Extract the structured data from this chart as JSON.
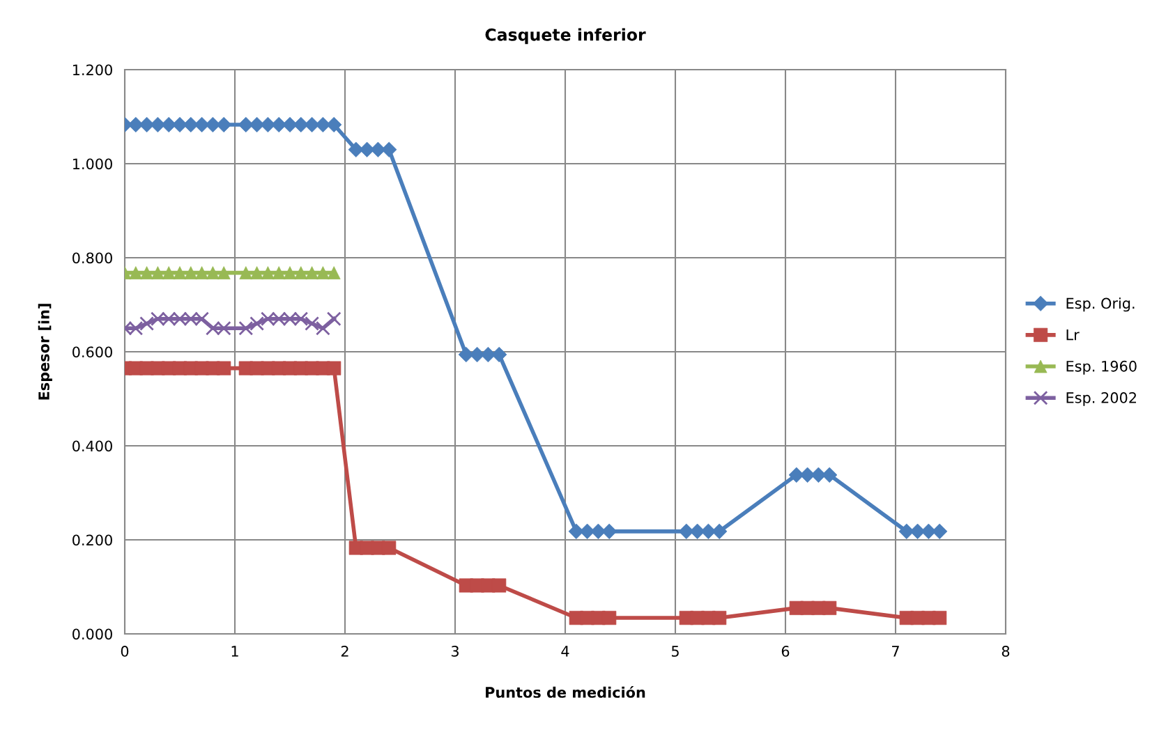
{
  "chart_data": {
    "type": "line",
    "title": "Casquete inferior",
    "xlabel": "Puntos de medición",
    "ylabel": "Espesor [in]",
    "x": [
      0,
      0.1,
      0.2,
      0.3,
      0.4,
      0.5,
      0.6,
      0.7,
      0.8,
      0.9,
      1.1,
      1.2,
      1.3,
      1.4,
      1.5,
      1.6,
      1.7,
      1.8,
      1.9,
      2.1,
      2.2,
      2.3,
      2.4,
      3.1,
      3.2,
      3.3,
      3.4,
      4.1,
      4.2,
      4.3,
      4.4,
      5.1,
      5.2,
      5.3,
      5.4,
      6.1,
      6.2,
      6.3,
      6.4,
      7.1,
      7.2,
      7.3,
      7.4
    ],
    "series": [
      {
        "name": "Esp. Orig.",
        "color": "#4a7ebb",
        "marker": "diamond",
        "values": [
          1.083,
          1.083,
          1.083,
          1.083,
          1.083,
          1.083,
          1.083,
          1.083,
          1.083,
          1.083,
          1.083,
          1.083,
          1.083,
          1.083,
          1.083,
          1.083,
          1.083,
          1.083,
          1.083,
          1.03,
          1.03,
          1.03,
          1.03,
          0.594,
          0.594,
          0.594,
          0.594,
          0.218,
          0.218,
          0.218,
          0.218,
          0.218,
          0.218,
          0.218,
          0.218,
          0.338,
          0.338,
          0.338,
          0.338,
          0.218,
          0.218,
          0.218,
          0.218
        ]
      },
      {
        "name": "Lr",
        "color": "#be4b48",
        "marker": "square",
        "values": [
          0.565,
          0.565,
          0.565,
          0.565,
          0.565,
          0.565,
          0.565,
          0.565,
          0.565,
          0.565,
          0.565,
          0.565,
          0.565,
          0.565,
          0.565,
          0.565,
          0.565,
          0.565,
          0.565,
          0.183,
          0.183,
          0.183,
          0.183,
          0.103,
          0.103,
          0.103,
          0.103,
          0.034,
          0.034,
          0.034,
          0.034,
          0.034,
          0.034,
          0.034,
          0.034,
          0.055,
          0.055,
          0.055,
          0.055,
          0.034,
          0.034,
          0.034,
          0.034
        ]
      },
      {
        "name": "Esp. 1960",
        "color": "#98b954",
        "marker": "triangle",
        "values": [
          0.768,
          0.768,
          0.768,
          0.768,
          0.768,
          0.768,
          0.768,
          0.768,
          0.768,
          0.768,
          0.768,
          0.768,
          0.768,
          0.768,
          0.768,
          0.768,
          0.768,
          0.768,
          0.768,
          null,
          null,
          null,
          null,
          null,
          null,
          null,
          null,
          null,
          null,
          null,
          null,
          null,
          null,
          null,
          null,
          null,
          null,
          null,
          null,
          null,
          null,
          null,
          null
        ]
      },
      {
        "name": "Esp. 2002",
        "color": "#7d60a0",
        "marker": "cross",
        "values": [
          0.65,
          0.65,
          0.66,
          0.67,
          0.67,
          0.67,
          0.67,
          0.67,
          0.65,
          0.65,
          0.65,
          0.66,
          0.67,
          0.67,
          0.67,
          0.67,
          0.66,
          0.65,
          0.67,
          null,
          null,
          null,
          null,
          null,
          null,
          null,
          null,
          null,
          null,
          null,
          null,
          null,
          null,
          null,
          null,
          null,
          null,
          null,
          null,
          null,
          null,
          null,
          null
        ]
      }
    ],
    "xlim": [
      0,
      8
    ],
    "xticks": [
      0,
      1,
      2,
      3,
      4,
      5,
      6,
      7,
      8
    ],
    "ylim": [
      0,
      1.2
    ],
    "yticks": [
      {
        "value": 0,
        "label": "0.000"
      },
      {
        "value": 0.2,
        "label": "0.200"
      },
      {
        "value": 0.4,
        "label": "0.400"
      },
      {
        "value": 0.6,
        "label": "0.600"
      },
      {
        "value": 0.8,
        "label": "0.800"
      },
      {
        "value": 1.0,
        "label": "1.000"
      },
      {
        "value": 1.2,
        "label": "1.200"
      }
    ],
    "grid": true,
    "legend": "right",
    "line_style": "solid"
  }
}
